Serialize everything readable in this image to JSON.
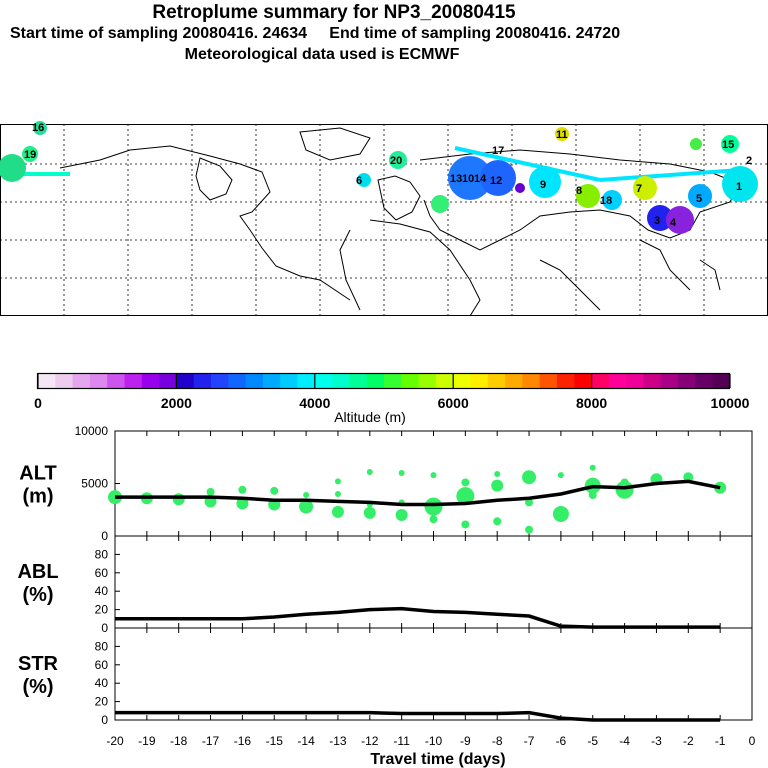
{
  "header": {
    "title": "Retroplume summary for NP3_20080415",
    "start_label": "Start time of sampling 20080416. 24634",
    "end_label": "End time of sampling 20080416. 24720",
    "met_label": "Meteorological data used is ECMWF"
  },
  "map": {
    "day_labels": [
      "16",
      "19",
      "20",
      "11",
      "13",
      "17",
      "14",
      "12",
      "10",
      "9",
      "8",
      "7",
      "5",
      "4",
      "3",
      "2",
      "1",
      "15",
      "18",
      "6"
    ]
  },
  "colorbar": {
    "ticks": [
      "0",
      "2000",
      "4000",
      "6000",
      "8000",
      "10000"
    ],
    "label": "Altitude (m)"
  },
  "chart_data": {
    "type": "line",
    "x": [
      -20,
      -19,
      -18,
      -17,
      -16,
      -15,
      -14,
      -13,
      -12,
      -11,
      -10,
      -9,
      -8,
      -7,
      -6,
      -5,
      -4,
      -3,
      -2,
      -1
    ],
    "xlim": [
      -20,
      0
    ],
    "xlabel": "Travel time (days)",
    "xticks": [
      "-20",
      "-19",
      "-18",
      "-17",
      "-16",
      "-15",
      "-14",
      "-13",
      "-12",
      "-11",
      "-10",
      "-9",
      "-8",
      "-7",
      "-6",
      "-5",
      "-4",
      "-3",
      "-2",
      "-1",
      "0"
    ],
    "panels": [
      {
        "id": "alt",
        "ylabel": "ALT\n(m)",
        "ylabel_top": "ALT",
        "ylabel_unit": "(m)",
        "ylim": [
          0,
          10000
        ],
        "yticks": [
          "0",
          "5000",
          "10000"
        ],
        "series": [
          {
            "name": "ALT mean",
            "values": [
              3700,
              3700,
              3700,
              3700,
              3600,
              3400,
              3400,
              3300,
              3200,
              3000,
              3000,
              3100,
              3400,
              3600,
              4000,
              4700,
              4600,
              5000,
              5200,
              4600
            ]
          }
        ],
        "scatter": [
          [
            -20,
            3700,
            7
          ],
          [
            -19,
            3600,
            6
          ],
          [
            -18,
            3500,
            6
          ],
          [
            -17,
            3300,
            6
          ],
          [
            -17,
            4200,
            4
          ],
          [
            -16,
            3100,
            6
          ],
          [
            -16,
            4400,
            4
          ],
          [
            -15,
            3000,
            6
          ],
          [
            -15,
            4300,
            4
          ],
          [
            -14,
            2800,
            7
          ],
          [
            -14,
            3900,
            3
          ],
          [
            -13,
            2300,
            6
          ],
          [
            -13,
            5200,
            3
          ],
          [
            -13,
            4000,
            3
          ],
          [
            -12,
            2200,
            6
          ],
          [
            -12,
            3000,
            3
          ],
          [
            -12,
            6100,
            3
          ],
          [
            -11,
            2000,
            6
          ],
          [
            -11,
            3200,
            3
          ],
          [
            -11,
            6000,
            3
          ],
          [
            -10,
            2800,
            9
          ],
          [
            -10,
            1600,
            4
          ],
          [
            -10,
            5800,
            3
          ],
          [
            -9,
            3800,
            9
          ],
          [
            -9,
            1100,
            4
          ],
          [
            -9,
            5100,
            4
          ],
          [
            -8,
            4800,
            6
          ],
          [
            -8,
            1400,
            4
          ],
          [
            -8,
            5900,
            3
          ],
          [
            -7,
            5600,
            7
          ],
          [
            -7,
            600,
            4
          ],
          [
            -7,
            3200,
            4
          ],
          [
            -6,
            2100,
            8
          ],
          [
            -6,
            5800,
            3
          ],
          [
            -5,
            4800,
            8
          ],
          [
            -5,
            3900,
            4
          ],
          [
            -5,
            6500,
            3
          ],
          [
            -4,
            4400,
            9
          ],
          [
            -4,
            5100,
            4
          ],
          [
            -3,
            5400,
            6
          ],
          [
            -2,
            5600,
            5
          ],
          [
            -1,
            4600,
            6
          ]
        ]
      },
      {
        "id": "abl",
        "ylabel_top": "ABL",
        "ylabel_unit": "(%)",
        "ylim": [
          0,
          100
        ],
        "yticks": [
          "0",
          "20",
          "40",
          "60",
          "80"
        ],
        "series": [
          {
            "name": "ABL",
            "values": [
              10,
              10,
              10,
              10,
              10,
              12,
              15,
              17,
              20,
              21,
              18,
              17,
              15,
              13,
              2,
              1,
              1,
              1,
              1,
              1
            ]
          }
        ]
      },
      {
        "id": "str",
        "ylabel_top": "STR",
        "ylabel_unit": "(%)",
        "ylim": [
          0,
          100
        ],
        "yticks": [
          "0",
          "20",
          "40",
          "60",
          "80"
        ],
        "series": [
          {
            "name": "STR",
            "values": [
              8,
              8,
              8,
              8,
              8,
              8,
              8,
              8,
              8,
              7,
              7,
              7,
              7,
              8,
              2,
              0,
              0,
              0,
              0,
              0
            ]
          }
        ]
      }
    ]
  }
}
